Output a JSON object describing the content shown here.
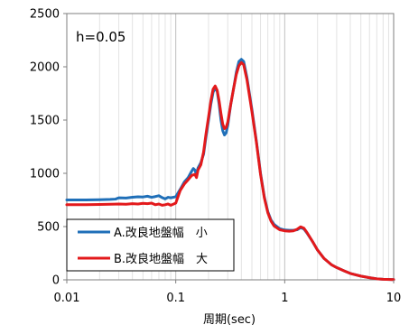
{
  "chart_data": {
    "type": "line",
    "annotation": "h=0.05",
    "xlabel": "周期(sec)",
    "ylabel": "",
    "x_scale": "log",
    "xlim": [
      0.01,
      10
    ],
    "ylim": [
      0,
      2500
    ],
    "x_ticks": [
      {
        "value": 0.01,
        "label": "0.01"
      },
      {
        "value": 0.1,
        "label": "0.1"
      },
      {
        "value": 1,
        "label": "1"
      },
      {
        "value": 10,
        "label": "10"
      }
    ],
    "y_ticks": [
      {
        "value": 0,
        "label": "0"
      },
      {
        "value": 500,
        "label": "500"
      },
      {
        "value": 1000,
        "label": "1000"
      },
      {
        "value": 1500,
        "label": "1500"
      },
      {
        "value": 2000,
        "label": "2000"
      },
      {
        "value": 2500,
        "label": "2500"
      }
    ],
    "grid": true,
    "legend_position": "bottom-left",
    "series": [
      {
        "name": "A.改良地盤幅　小",
        "color": "#1f6fb8",
        "points": [
          [
            0.01,
            750
          ],
          [
            0.015,
            750
          ],
          [
            0.02,
            752
          ],
          [
            0.025,
            755
          ],
          [
            0.028,
            758
          ],
          [
            0.03,
            770
          ],
          [
            0.035,
            768
          ],
          [
            0.04,
            775
          ],
          [
            0.045,
            780
          ],
          [
            0.05,
            778
          ],
          [
            0.055,
            785
          ],
          [
            0.06,
            775
          ],
          [
            0.065,
            782
          ],
          [
            0.07,
            790
          ],
          [
            0.075,
            772
          ],
          [
            0.08,
            760
          ],
          [
            0.085,
            775
          ],
          [
            0.09,
            770
          ],
          [
            0.1,
            780
          ],
          [
            0.11,
            850
          ],
          [
            0.12,
            920
          ],
          [
            0.13,
            960
          ],
          [
            0.14,
            1020
          ],
          [
            0.145,
            1045
          ],
          [
            0.15,
            1030
          ],
          [
            0.155,
            985
          ],
          [
            0.16,
            1050
          ],
          [
            0.17,
            1100
          ],
          [
            0.18,
            1180
          ],
          [
            0.19,
            1350
          ],
          [
            0.2,
            1500
          ],
          [
            0.21,
            1650
          ],
          [
            0.22,
            1760
          ],
          [
            0.23,
            1800
          ],
          [
            0.24,
            1770
          ],
          [
            0.25,
            1650
          ],
          [
            0.26,
            1500
          ],
          [
            0.27,
            1400
          ],
          [
            0.28,
            1360
          ],
          [
            0.29,
            1380
          ],
          [
            0.3,
            1450
          ],
          [
            0.32,
            1650
          ],
          [
            0.34,
            1800
          ],
          [
            0.36,
            1950
          ],
          [
            0.38,
            2050
          ],
          [
            0.4,
            2070
          ],
          [
            0.42,
            2050
          ],
          [
            0.45,
            1900
          ],
          [
            0.5,
            1600
          ],
          [
            0.55,
            1300
          ],
          [
            0.6,
            1000
          ],
          [
            0.65,
            780
          ],
          [
            0.7,
            640
          ],
          [
            0.75,
            560
          ],
          [
            0.8,
            520
          ],
          [
            0.9,
            480
          ],
          [
            1.0,
            468
          ],
          [
            1.1,
            465
          ],
          [
            1.2,
            465
          ],
          [
            1.3,
            470
          ],
          [
            1.4,
            490
          ],
          [
            1.5,
            478
          ],
          [
            1.6,
            440
          ],
          [
            1.8,
            360
          ],
          [
            2.0,
            280
          ],
          [
            2.3,
            200
          ],
          [
            2.7,
            140
          ],
          [
            3.0,
            115
          ],
          [
            3.5,
            85
          ],
          [
            4.0,
            60
          ],
          [
            5.0,
            35
          ],
          [
            6.0,
            20
          ],
          [
            7.0,
            10
          ],
          [
            8.0,
            5
          ],
          [
            10,
            2
          ]
        ]
      },
      {
        "name": "B.改良地盤幅　大",
        "color": "#e3191b",
        "points": [
          [
            0.01,
            705
          ],
          [
            0.015,
            706
          ],
          [
            0.02,
            708
          ],
          [
            0.025,
            710
          ],
          [
            0.03,
            712
          ],
          [
            0.035,
            710
          ],
          [
            0.04,
            715
          ],
          [
            0.045,
            712
          ],
          [
            0.05,
            718
          ],
          [
            0.055,
            715
          ],
          [
            0.06,
            720
          ],
          [
            0.065,
            705
          ],
          [
            0.07,
            712
          ],
          [
            0.075,
            700
          ],
          [
            0.08,
            705
          ],
          [
            0.085,
            712
          ],
          [
            0.09,
            700
          ],
          [
            0.1,
            720
          ],
          [
            0.11,
            840
          ],
          [
            0.12,
            900
          ],
          [
            0.13,
            940
          ],
          [
            0.14,
            980
          ],
          [
            0.15,
            990
          ],
          [
            0.155,
            960
          ],
          [
            0.16,
            1030
          ],
          [
            0.17,
            1080
          ],
          [
            0.18,
            1200
          ],
          [
            0.19,
            1380
          ],
          [
            0.2,
            1530
          ],
          [
            0.21,
            1680
          ],
          [
            0.22,
            1790
          ],
          [
            0.23,
            1820
          ],
          [
            0.24,
            1780
          ],
          [
            0.25,
            1680
          ],
          [
            0.26,
            1560
          ],
          [
            0.27,
            1460
          ],
          [
            0.28,
            1420
          ],
          [
            0.29,
            1430
          ],
          [
            0.3,
            1480
          ],
          [
            0.32,
            1650
          ],
          [
            0.34,
            1800
          ],
          [
            0.36,
            1930
          ],
          [
            0.38,
            2010
          ],
          [
            0.4,
            2040
          ],
          [
            0.42,
            2020
          ],
          [
            0.45,
            1880
          ],
          [
            0.5,
            1580
          ],
          [
            0.55,
            1290
          ],
          [
            0.6,
            990
          ],
          [
            0.65,
            770
          ],
          [
            0.7,
            630
          ],
          [
            0.75,
            550
          ],
          [
            0.8,
            505
          ],
          [
            0.9,
            470
          ],
          [
            1.0,
            460
          ],
          [
            1.1,
            457
          ],
          [
            1.2,
            460
          ],
          [
            1.3,
            475
          ],
          [
            1.4,
            498
          ],
          [
            1.5,
            485
          ],
          [
            1.6,
            445
          ],
          [
            1.8,
            360
          ],
          [
            2.0,
            280
          ],
          [
            2.3,
            200
          ],
          [
            2.7,
            140
          ],
          [
            3.0,
            115
          ],
          [
            3.5,
            85
          ],
          [
            4.0,
            60
          ],
          [
            5.0,
            35
          ],
          [
            6.0,
            20
          ],
          [
            7.0,
            10
          ],
          [
            8.0,
            5
          ],
          [
            10,
            2
          ]
        ]
      }
    ]
  }
}
